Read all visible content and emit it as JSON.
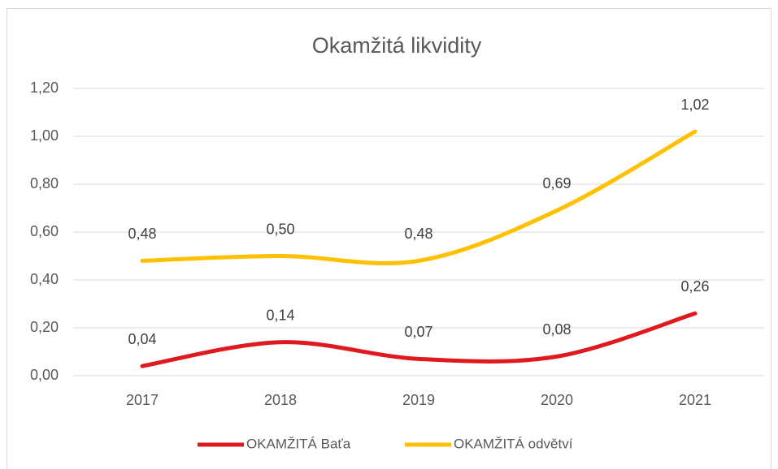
{
  "chart_data": {
    "type": "line",
    "title": "Okamžitá likvidity",
    "categories": [
      "2017",
      "2018",
      "2019",
      "2020",
      "2021"
    ],
    "series": [
      {
        "name": "OKAMŽITÁ Baťa",
        "color": "#e0191f",
        "values": [
          0.04,
          0.14,
          0.07,
          0.08,
          0.26
        ],
        "value_labels": [
          "0,04",
          "0,14",
          "0,07",
          "0,08",
          "0,26"
        ]
      },
      {
        "name": "OKAMŽITÁ odvětví",
        "color": "#ffc000",
        "values": [
          0.48,
          0.5,
          0.48,
          0.69,
          1.02
        ],
        "value_labels": [
          "0,48",
          "0,50",
          "0,48",
          "0,69",
          "1,02"
        ]
      }
    ],
    "ylim": [
      0,
      1.2
    ],
    "yticks": [
      {
        "value": 0,
        "label": "0,00"
      },
      {
        "value": 0.2,
        "label": "0,20"
      },
      {
        "value": 0.4,
        "label": "0,40"
      },
      {
        "value": 0.6,
        "label": "0,60"
      },
      {
        "value": 0.8,
        "label": "0,80"
      },
      {
        "value": 1.0,
        "label": "1,00"
      },
      {
        "value": 1.2,
        "label": "1,20"
      }
    ],
    "grid": true,
    "legend": "bottom"
  }
}
